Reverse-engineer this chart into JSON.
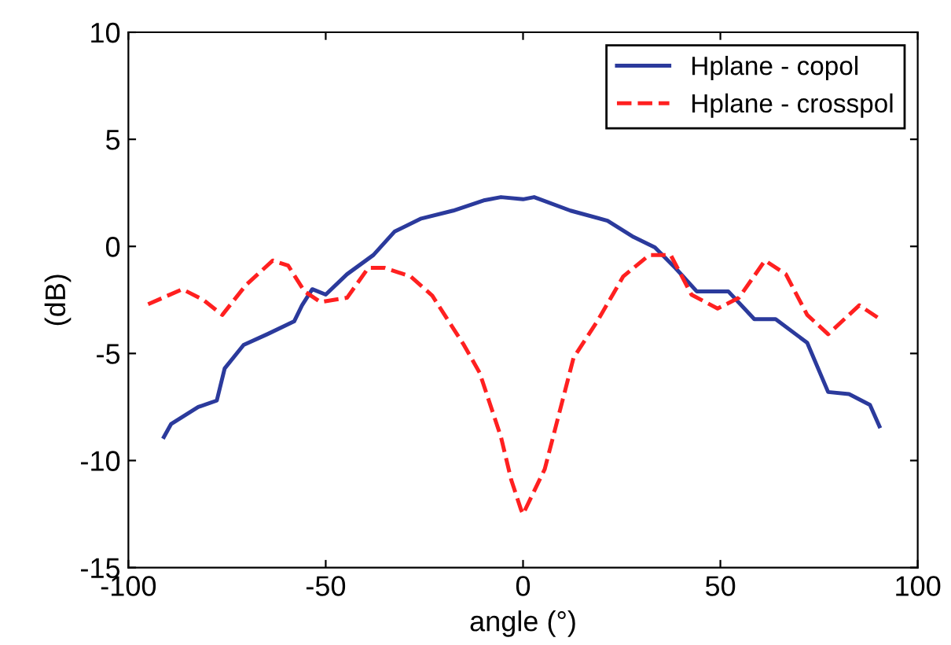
{
  "chart_data": {
    "type": "line",
    "xlabel": "angle (°)",
    "ylabel": "(dB)",
    "xlim": [
      -100,
      100
    ],
    "ylim": [
      -15,
      10
    ],
    "xticks": [
      -100,
      -50,
      0,
      50,
      100
    ],
    "yticks": [
      -15,
      -10,
      -5,
      0,
      5,
      10
    ],
    "grid": false,
    "legend": "top right",
    "series": [
      {
        "name": "Hplane - copol",
        "color": "#2b3a9c",
        "line_style": "solid",
        "x": [
          -91,
          -89.2,
          -82.3,
          -77.6,
          -75.6,
          -70.8,
          -64.8,
          -58,
          -56,
          -53.4,
          -50,
          -44.6,
          -37.9,
          -32.5,
          -25.8,
          -17.7,
          -9.7,
          -5.6,
          0,
          2.8,
          12,
          21.4,
          28,
          33.4,
          38.7,
          44,
          52,
          58.6,
          64,
          72,
          77.3,
          82.6,
          87.9,
          90.3
        ],
        "values": [
          -8.9,
          -8.3,
          -7.5,
          -7.2,
          -5.7,
          -4.6,
          -4.1,
          -3.5,
          -2.75,
          -2.0,
          -2.25,
          -1.3,
          -0.4,
          0.7,
          1.3,
          1.67,
          2.16,
          2.3,
          2.2,
          2.3,
          1.67,
          1.2,
          0.44,
          -0.05,
          -1.03,
          -2.1,
          -2.1,
          -3.4,
          -3.4,
          -4.5,
          -6.8,
          -6.9,
          -7.4,
          -8.4
        ]
      },
      {
        "name": "Hplane - crosspol",
        "color": "#ff2020",
        "line_style": "dashed",
        "x": [
          -95,
          -86.3,
          -81,
          -76.2,
          -70.2,
          -63.4,
          -59.5,
          -55.4,
          -51.3,
          -44.6,
          -39.2,
          -35.2,
          -28.5,
          -23,
          -15,
          -11,
          -5.6,
          -3,
          -0.5,
          0,
          5.5,
          12.8,
          18.8,
          25.4,
          32,
          37.4,
          42.7,
          49.3,
          54.7,
          61.3,
          66.6,
          72,
          77.3,
          85.2,
          90.5
        ],
        "values": [
          -2.7,
          -2.0,
          -2.5,
          -3.2,
          -1.8,
          -0.66,
          -0.9,
          -2.1,
          -2.6,
          -2.4,
          -1.0,
          -1.0,
          -1.4,
          -2.3,
          -4.6,
          -5.9,
          -8.9,
          -10.9,
          -12.3,
          -12.5,
          -10.4,
          -5.2,
          -3.5,
          -1.4,
          -0.4,
          -0.4,
          -2.26,
          -2.9,
          -2.4,
          -0.66,
          -1.3,
          -3.2,
          -4.1,
          -2.75,
          -3.4
        ]
      }
    ]
  }
}
